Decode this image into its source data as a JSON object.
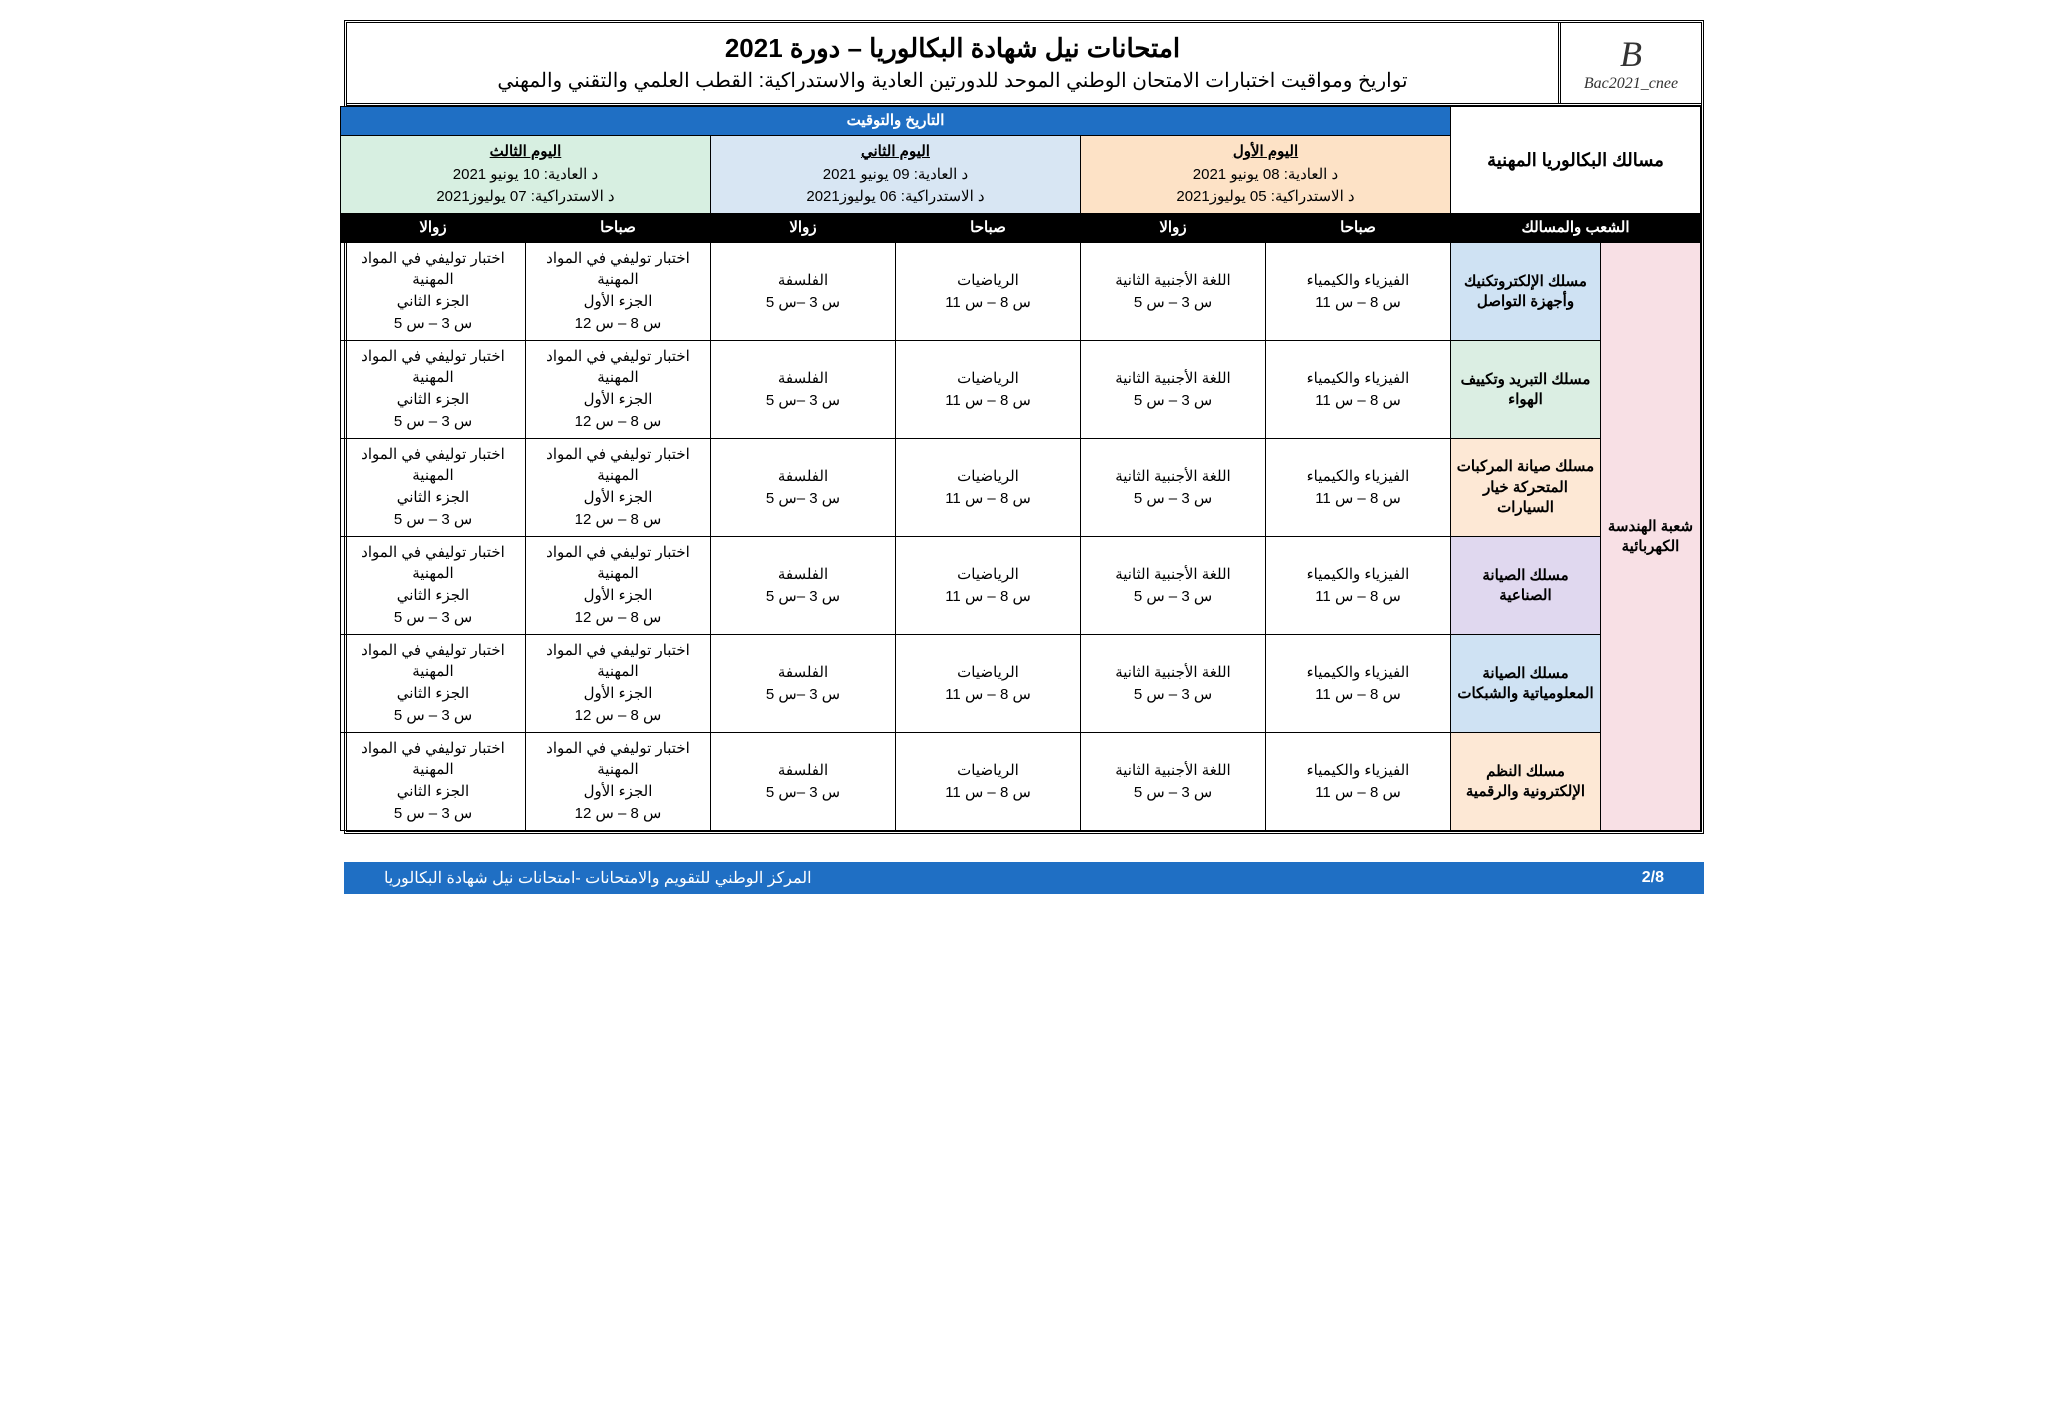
{
  "logo": {
    "top": "B",
    "bottom": "Bac2021_cnee"
  },
  "header": {
    "line1": "امتحانات نيل شهادة البكالوريا – دورة 2021",
    "line2": "تواريخ ومواقيت اختبارات الامتحان الوطني الموحد للدورتين العادية والاستدراكية: القطب العلمي والتقني والمهني"
  },
  "cat_label": "مسالك البكالوريا المهنية",
  "date_band": "التاريخ والتوقيت",
  "days": [
    {
      "name": "اليوم الأول",
      "normal": "د العادية: 08 يونيو 2021",
      "remed": "د الاستدراكية: 05 يوليوز2021",
      "bg": "bg-orange"
    },
    {
      "name": "اليوم الثاني",
      "normal": "د العادية: 09 يونيو 2021",
      "remed": "د الاستدراكية: 06 يوليوز2021",
      "bg": "bg-blue"
    },
    {
      "name": "اليوم الثالث",
      "normal": "د العادية: 10 يونيو 2021",
      "remed": "د الاستدراكية: 07 يوليوز2021",
      "bg": "bg-green"
    }
  ],
  "period_morning": "صباحا",
  "period_afternoon": "زوالا",
  "branch_head": "الشعب والمسالك",
  "branch_name": "شعبة الهندسة الكهربائية",
  "cells": {
    "phys": {
      "subj": "الفيزياء والكيمياء",
      "time": "س 8 – س 11"
    },
    "lang2": {
      "subj": "اللغة الأجنبية الثانية",
      "time": "س 3 – س 5"
    },
    "math": {
      "subj": "الرياضيات",
      "time": "س 8 – س 11"
    },
    "philo": {
      "subj": "الفلسفة",
      "time": "س 3 –س 5"
    },
    "prof1": {
      "subj": "اختبار توليفي في المواد المهنية",
      "part": "الجزء الأول",
      "time": "س 8 – س 12"
    },
    "prof2": {
      "subj": "اختبار توليفي في المواد المهنية",
      "part": "الجزء الثاني",
      "time": "س 3 – س 5"
    }
  },
  "rows": [
    {
      "label": "مسلك الإلكتروتكنيك وأجهزة التواصل",
      "bg": "bg-lblue"
    },
    {
      "label": "مسلك التبريد وتكييف الهواء",
      "bg": "bg-lgreen"
    },
    {
      "label": "مسلك صيانة المركبات المتحركة خيار السيارات",
      "bg": "bg-lorange"
    },
    {
      "label": "مسلك الصيانة الصناعية",
      "bg": "bg-purple"
    },
    {
      "label": "مسلك الصيانة المعلومياتية والشبكات",
      "bg": "bg-lblue"
    },
    {
      "label": "مسلك النظم الإلكترونية والرقمية",
      "bg": "bg-lorange"
    }
  ],
  "footer": {
    "text": "المركز الوطني للتقويم والامتحانات -امتحانات نيل شهادة البكالوريا",
    "page": "2/8"
  }
}
